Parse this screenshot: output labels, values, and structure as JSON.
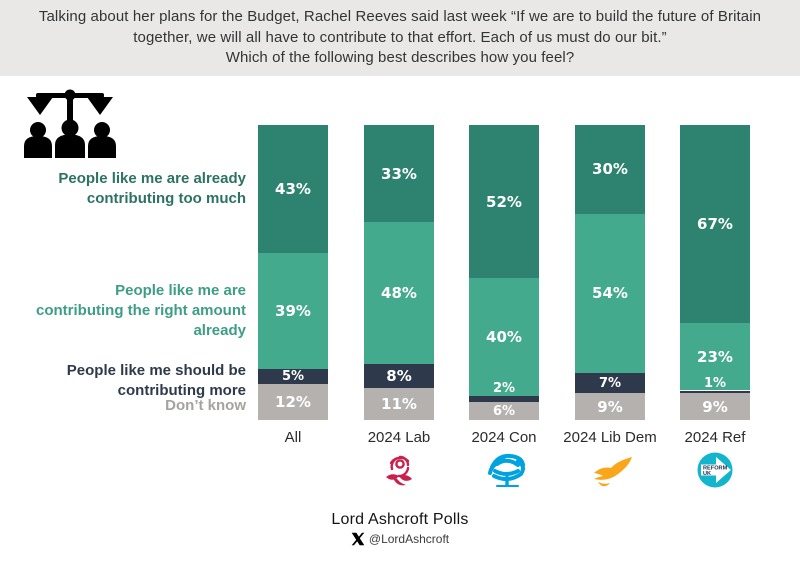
{
  "header": {
    "title_lines": [
      "Talking about her plans for the Budget, Rachel Reeves said last week “If we are to build the future of Britain",
      "together, we will all have to contribute to that effort. Each of us must do our bit.”",
      "Which of the following best describes how you feel?"
    ]
  },
  "icons": {
    "hero": "scales-and-people-icon",
    "footer_x": "x-logo-icon"
  },
  "chart_data": {
    "type": "bar",
    "stacked": true,
    "title": "Which of the following best describes how you feel?",
    "categories": [
      "All",
      "2024 Lab",
      "2024 Con",
      "2024 Lib Dem",
      "2024 Ref"
    ],
    "series": [
      {
        "name": "People like me are already contributing too much",
        "color": "#2e8270",
        "values": [
          43,
          33,
          52,
          30,
          67
        ]
      },
      {
        "name": "People like me are contributing the right amount already",
        "color": "#43aa8e",
        "values": [
          39,
          48,
          40,
          54,
          23
        ]
      },
      {
        "name": "People like me should be contributing more",
        "color": "#2e3a4c",
        "values": [
          5,
          8,
          2,
          7,
          1
        ]
      },
      {
        "name": "Don’t know",
        "color": "#b4b1ae",
        "values": [
          12,
          11,
          6,
          9,
          9
        ]
      }
    ],
    "value_suffix": "%",
    "ylim": [
      0,
      100
    ],
    "grid": false,
    "legend_position": "left",
    "category_logos": [
      null,
      "labour-rose-icon",
      "conservative-tree-icon",
      "libdem-bird-icon",
      "reform-uk-icon"
    ],
    "reform_logo_text_line1": "REFORM",
    "reform_logo_text_line2": "UK"
  },
  "row_labels": [
    {
      "lines": [
        "People like me are already",
        "contributing too much"
      ],
      "color": "#2c7362"
    },
    {
      "lines": [
        "People like me are",
        "contributing the right amount",
        "already"
      ],
      "color": "#3d9e85"
    },
    {
      "lines": [
        "People like me should be",
        "contributing more"
      ],
      "color": "#2e3a4c"
    },
    {
      "lines": [
        "Don’t know"
      ],
      "color": "#a6a29e"
    }
  ],
  "footer": {
    "brand": "Lord Ashcroft Polls",
    "handle": "@LordAshcroft"
  }
}
